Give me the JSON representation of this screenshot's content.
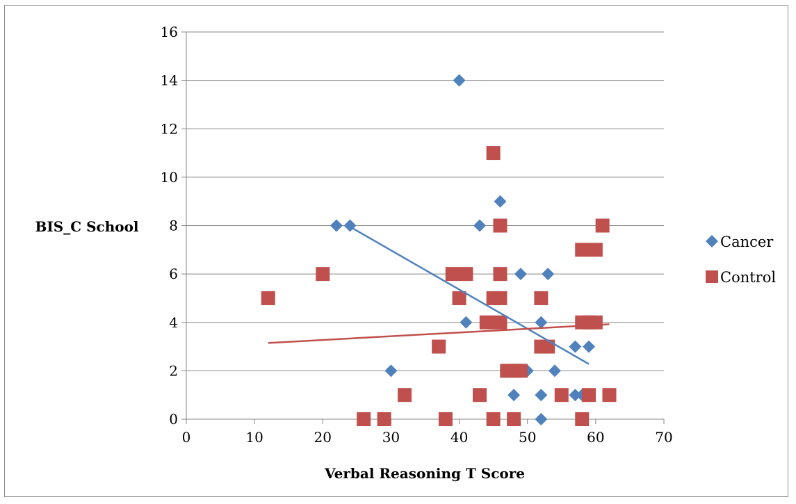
{
  "chart_data": {
    "type": "scatter",
    "title": "",
    "xlabel": "Verbal Reasoning T Score",
    "ylabel": "BIS_C School",
    "xlim": [
      0,
      70
    ],
    "ylim": [
      0,
      16
    ],
    "xticks": [
      0,
      10,
      20,
      30,
      40,
      50,
      60,
      70
    ],
    "yticks": [
      0,
      2,
      4,
      6,
      8,
      10,
      12,
      14,
      16
    ],
    "grid": "horizontal",
    "legend_position": "right",
    "series": [
      {
        "name": "Cancer",
        "marker": "diamond",
        "color": "#4f81bd",
        "points": [
          [
            22,
            8
          ],
          [
            24,
            8
          ],
          [
            30,
            2
          ],
          [
            40,
            14
          ],
          [
            41,
            4
          ],
          [
            43,
            8
          ],
          [
            46,
            9
          ],
          [
            49,
            6
          ],
          [
            50,
            2
          ],
          [
            52,
            4
          ],
          [
            53,
            6
          ],
          [
            48,
            1
          ],
          [
            52,
            1
          ],
          [
            52,
            0
          ],
          [
            54,
            2
          ],
          [
            57,
            3
          ],
          [
            57,
            1
          ],
          [
            58,
            1
          ],
          [
            59,
            3
          ]
        ],
        "trendline": [
          [
            24,
            7.95
          ],
          [
            59,
            2.28
          ]
        ]
      },
      {
        "name": "Control",
        "marker": "square",
        "color": "#c0504d",
        "points": [
          [
            12,
            5
          ],
          [
            20,
            6
          ],
          [
            26,
            0
          ],
          [
            29,
            0
          ],
          [
            32,
            1
          ],
          [
            37,
            3
          ],
          [
            38,
            0
          ],
          [
            39,
            6
          ],
          [
            40,
            5
          ],
          [
            41,
            6
          ],
          [
            43,
            1
          ],
          [
            44,
            4
          ],
          [
            45,
            11
          ],
          [
            45,
            5
          ],
          [
            45,
            0
          ],
          [
            46,
            8
          ],
          [
            46,
            6
          ],
          [
            46,
            5
          ],
          [
            46,
            4
          ],
          [
            47,
            2
          ],
          [
            48,
            2
          ],
          [
            48,
            0
          ],
          [
            49,
            2
          ],
          [
            52,
            5
          ],
          [
            52,
            3
          ],
          [
            53,
            3
          ],
          [
            55,
            1
          ],
          [
            58,
            7
          ],
          [
            58,
            4
          ],
          [
            58,
            0
          ],
          [
            59,
            1
          ],
          [
            60,
            7
          ],
          [
            59,
            4
          ],
          [
            60,
            4
          ],
          [
            61,
            8
          ],
          [
            62,
            1
          ]
        ],
        "trendline": [
          [
            12,
            3.15
          ],
          [
            62,
            3.92
          ]
        ]
      }
    ]
  }
}
